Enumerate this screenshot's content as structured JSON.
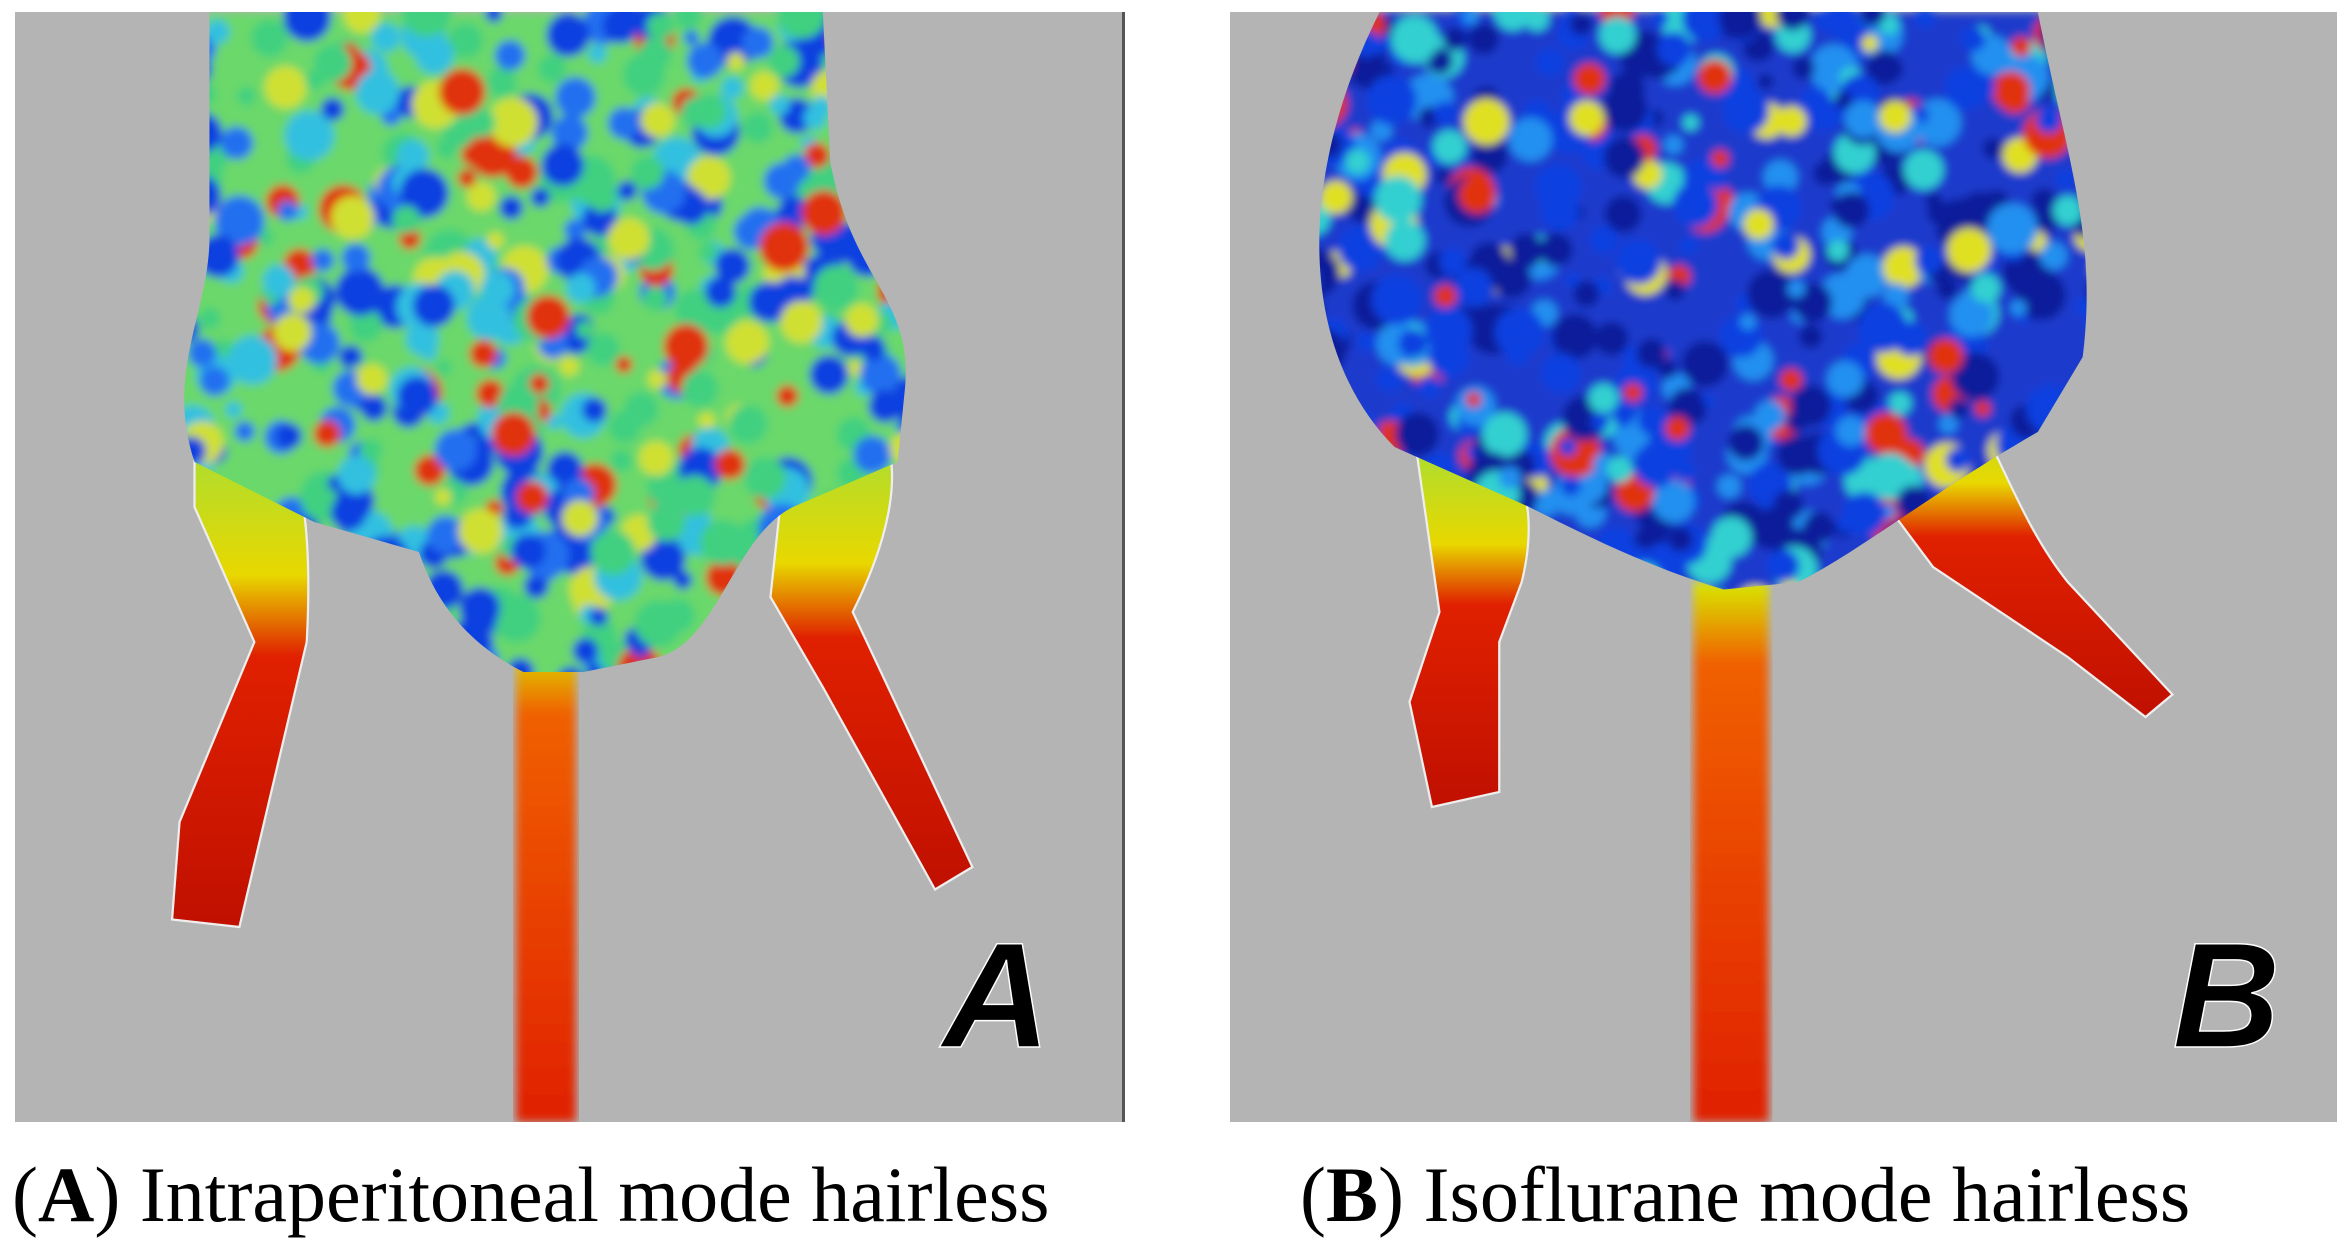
{
  "panels": [
    {
      "letter": "A",
      "prefix": "(",
      "suffix": ")",
      "caption": "Intraperitoneal mode hairless"
    },
    {
      "letter": "B",
      "prefix": "(",
      "suffix": ")",
      "caption": "Isoflurane mode hairless"
    }
  ]
}
